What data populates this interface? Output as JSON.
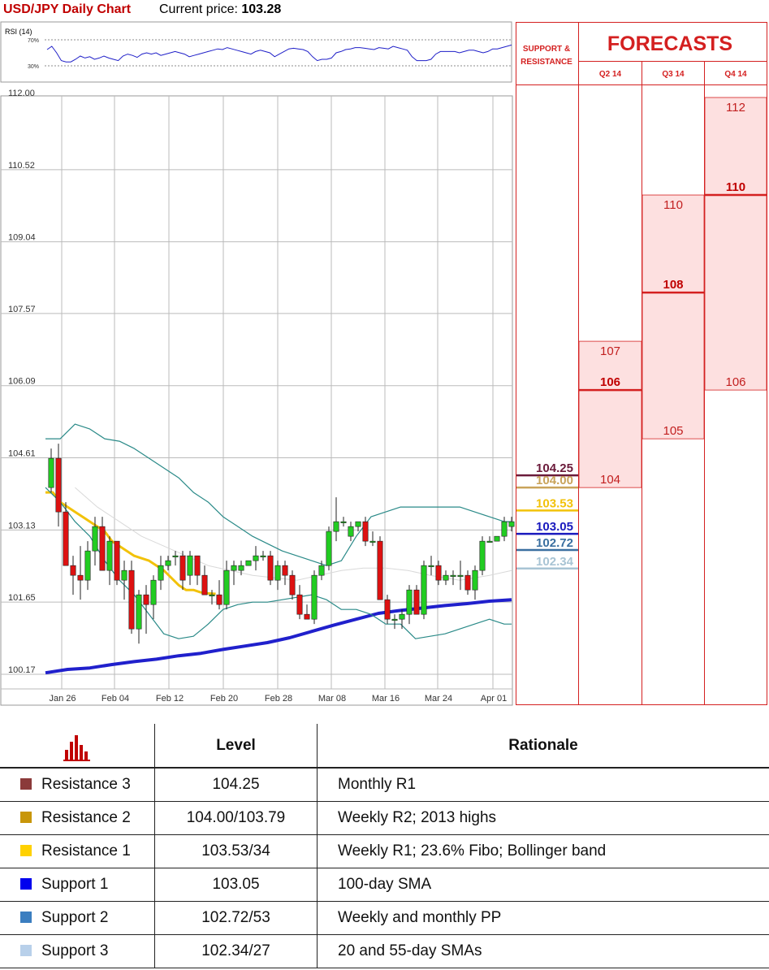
{
  "header": {
    "title": "USD/JPY Daily Chart",
    "price_label": "Current price:",
    "price_value": "103.28"
  },
  "rsi": {
    "label": "RSI (14)",
    "levels": [
      70,
      30
    ],
    "level_labels": [
      "70%",
      "30%"
    ],
    "values": [
      55,
      60,
      50,
      38,
      36,
      36,
      40,
      45,
      42,
      44,
      40,
      42,
      45,
      42,
      40,
      38,
      45,
      48,
      46,
      43,
      48,
      50,
      48,
      50,
      46,
      48,
      50,
      52,
      50,
      48,
      44,
      46,
      48,
      50,
      52,
      54,
      56,
      55,
      58,
      56,
      54,
      52,
      50,
      48,
      52,
      54,
      52,
      50,
      44,
      48,
      52,
      56,
      57,
      56,
      55,
      52,
      44,
      38,
      40,
      40,
      42,
      50,
      52,
      55,
      56,
      58,
      58,
      57,
      56,
      55,
      58,
      57,
      56,
      60,
      58,
      56,
      54,
      44,
      38,
      38,
      38,
      40,
      48,
      52,
      52,
      52,
      52,
      50,
      52,
      54,
      54,
      52,
      50,
      52,
      56,
      56,
      58,
      60,
      62
    ],
    "color": "#1f1fc8"
  },
  "chart_data": {
    "type": "candlestick",
    "title": "USD/JPY Daily Chart",
    "ylim": [
      100.17,
      112.0
    ],
    "y_ticks": [
      "112.00",
      "110.52",
      "109.04",
      "107.57",
      "106.09",
      "104.61",
      "103.13",
      "101.65",
      "100.17"
    ],
    "x_ticks": [
      "Jan 26",
      "Feb 04",
      "Feb 12",
      "Feb 20",
      "Feb 28",
      "Mar 08",
      "Mar 16",
      "Mar 24",
      "Apr 01"
    ],
    "candles": [
      {
        "o": 104.0,
        "h": 104.8,
        "l": 103.9,
        "c": 104.6
      },
      {
        "o": 104.6,
        "h": 104.9,
        "l": 103.2,
        "c": 103.5
      },
      {
        "o": 103.5,
        "h": 103.7,
        "l": 102.5,
        "c": 102.4
      },
      {
        "o": 102.4,
        "h": 102.6,
        "l": 101.8,
        "c": 102.2
      },
      {
        "o": 102.2,
        "h": 102.8,
        "l": 101.7,
        "c": 102.1
      },
      {
        "o": 102.1,
        "h": 102.9,
        "l": 101.9,
        "c": 102.7
      },
      {
        "o": 102.7,
        "h": 103.4,
        "l": 102.4,
        "c": 103.2
      },
      {
        "o": 103.2,
        "h": 103.4,
        "l": 102.3,
        "c": 102.3
      },
      {
        "o": 102.3,
        "h": 103.0,
        "l": 102.0,
        "c": 102.9
      },
      {
        "o": 102.9,
        "h": 102.9,
        "l": 102.0,
        "c": 102.1
      },
      {
        "o": 102.1,
        "h": 102.5,
        "l": 101.7,
        "c": 102.3
      },
      {
        "o": 102.3,
        "h": 102.5,
        "l": 101.0,
        "c": 101.1
      },
      {
        "o": 101.1,
        "h": 101.9,
        "l": 100.8,
        "c": 101.8
      },
      {
        "o": 101.8,
        "h": 102.0,
        "l": 101.0,
        "c": 101.6
      },
      {
        "o": 101.6,
        "h": 102.2,
        "l": 101.3,
        "c": 102.1
      },
      {
        "o": 102.1,
        "h": 102.6,
        "l": 101.9,
        "c": 102.4
      },
      {
        "o": 102.4,
        "h": 102.6,
        "l": 102.3,
        "c": 102.5
      },
      {
        "o": 102.6,
        "h": 102.7,
        "l": 102.4,
        "c": 102.6
      },
      {
        "o": 102.6,
        "h": 102.7,
        "l": 101.9,
        "c": 102.1
      },
      {
        "o": 102.2,
        "h": 102.7,
        "l": 102.0,
        "c": 102.6
      },
      {
        "o": 102.6,
        "h": 102.6,
        "l": 102.0,
        "c": 102.2
      },
      {
        "o": 102.2,
        "h": 102.4,
        "l": 101.8,
        "c": 101.8
      },
      {
        "o": 101.8,
        "h": 101.9,
        "l": 101.6,
        "c": 101.8
      },
      {
        "o": 101.8,
        "h": 102.1,
        "l": 101.5,
        "c": 101.6
      },
      {
        "o": 101.6,
        "h": 102.5,
        "l": 101.5,
        "c": 102.3
      },
      {
        "o": 102.3,
        "h": 102.5,
        "l": 102.0,
        "c": 102.4
      },
      {
        "o": 102.3,
        "h": 102.5,
        "l": 102.2,
        "c": 102.4
      },
      {
        "o": 102.4,
        "h": 102.5,
        "l": 102.4,
        "c": 102.5
      },
      {
        "o": 102.5,
        "h": 102.8,
        "l": 102.3,
        "c": 102.6
      },
      {
        "o": 102.6,
        "h": 102.7,
        "l": 102.5,
        "c": 102.6
      },
      {
        "o": 102.6,
        "h": 102.7,
        "l": 102.0,
        "c": 102.1
      },
      {
        "o": 102.1,
        "h": 102.5,
        "l": 101.9,
        "c": 102.4
      },
      {
        "o": 102.4,
        "h": 102.5,
        "l": 102.0,
        "c": 102.2
      },
      {
        "o": 102.2,
        "h": 102.3,
        "l": 101.7,
        "c": 101.8
      },
      {
        "o": 101.8,
        "h": 102.0,
        "l": 101.3,
        "c": 101.4
      },
      {
        "o": 101.4,
        "h": 101.6,
        "l": 101.3,
        "c": 101.3
      },
      {
        "o": 101.3,
        "h": 102.3,
        "l": 101.2,
        "c": 102.2
      },
      {
        "o": 102.2,
        "h": 102.5,
        "l": 102.1,
        "c": 102.4
      },
      {
        "o": 102.4,
        "h": 103.2,
        "l": 102.3,
        "c": 103.1
      },
      {
        "o": 103.1,
        "h": 103.8,
        "l": 102.9,
        "c": 103.3
      },
      {
        "o": 103.3,
        "h": 103.4,
        "l": 103.2,
        "c": 103.3
      },
      {
        "o": 103.0,
        "h": 103.3,
        "l": 102.9,
        "c": 103.2
      },
      {
        "o": 103.2,
        "h": 103.3,
        "l": 103.1,
        "c": 103.3
      },
      {
        "o": 103.3,
        "h": 103.4,
        "l": 102.8,
        "c": 102.9
      },
      {
        "o": 102.9,
        "h": 103.1,
        "l": 102.8,
        "c": 102.9
      },
      {
        "o": 102.9,
        "h": 103.0,
        "l": 101.7,
        "c": 101.7
      },
      {
        "o": 101.7,
        "h": 101.8,
        "l": 101.2,
        "c": 101.3
      },
      {
        "o": 101.3,
        "h": 101.4,
        "l": 101.1,
        "c": 101.3
      },
      {
        "o": 101.3,
        "h": 101.5,
        "l": 101.1,
        "c": 101.4
      },
      {
        "o": 101.4,
        "h": 102.0,
        "l": 101.2,
        "c": 101.9
      },
      {
        "o": 101.9,
        "h": 102.0,
        "l": 101.4,
        "c": 101.4
      },
      {
        "o": 101.4,
        "h": 102.5,
        "l": 101.3,
        "c": 102.4
      },
      {
        "o": 102.4,
        "h": 102.6,
        "l": 102.2,
        "c": 102.4
      },
      {
        "o": 102.4,
        "h": 102.5,
        "l": 102.0,
        "c": 102.1
      },
      {
        "o": 102.1,
        "h": 102.3,
        "l": 102.0,
        "c": 102.2
      },
      {
        "o": 102.2,
        "h": 102.3,
        "l": 102.0,
        "c": 102.2
      },
      {
        "o": 102.2,
        "h": 102.5,
        "l": 101.9,
        "c": 102.2
      },
      {
        "o": 102.2,
        "h": 102.3,
        "l": 101.8,
        "c": 101.9
      },
      {
        "o": 101.9,
        "h": 102.4,
        "l": 101.7,
        "c": 102.3
      },
      {
        "o": 102.3,
        "h": 103.0,
        "l": 102.2,
        "c": 102.9
      },
      {
        "o": 102.9,
        "h": 103.0,
        "l": 102.9,
        "c": 102.9
      },
      {
        "o": 102.9,
        "h": 103.0,
        "l": 102.9,
        "c": 103.0
      },
      {
        "o": 103.0,
        "h": 103.4,
        "l": 102.9,
        "c": 103.3
      },
      {
        "o": 103.2,
        "h": 103.4,
        "l": 103.1,
        "c": 103.3
      }
    ],
    "series": [
      {
        "kind": "line",
        "color": "#f2c20a",
        "width": 3,
        "values": [
          [
            0,
            103.9
          ],
          [
            10,
            103.9
          ],
          [
            20,
            103.7
          ],
          [
            30,
            103.6
          ],
          [
            40,
            103.5
          ],
          [
            50,
            103.4
          ],
          [
            60,
            103.3
          ],
          [
            70,
            103.2
          ],
          [
            80,
            103.1
          ],
          [
            90,
            102.9
          ],
          [
            100,
            102.8
          ],
          [
            110,
            102.7
          ],
          [
            120,
            102.6
          ],
          [
            130,
            102.55
          ],
          [
            140,
            102.5
          ],
          [
            150,
            102.4
          ],
          [
            160,
            102.3
          ],
          [
            170,
            102.15
          ],
          [
            180,
            102.0
          ],
          [
            190,
            101.9
          ],
          [
            200,
            101.9
          ],
          [
            210,
            101.85
          ],
          [
            220,
            101.83
          ],
          [
            230,
            101.82
          ]
        ]
      },
      {
        "kind": "line",
        "color": "#2020cc",
        "width": 4,
        "values": [
          [
            0,
            100.2
          ],
          [
            30,
            100.27
          ],
          [
            60,
            100.3
          ],
          [
            90,
            100.37
          ],
          [
            120,
            100.43
          ],
          [
            150,
            100.48
          ],
          [
            180,
            100.55
          ],
          [
            210,
            100.6
          ],
          [
            240,
            100.68
          ],
          [
            270,
            100.75
          ],
          [
            300,
            100.82
          ],
          [
            330,
            100.92
          ],
          [
            360,
            101.05
          ],
          [
            390,
            101.18
          ],
          [
            420,
            101.3
          ],
          [
            450,
            101.42
          ],
          [
            480,
            101.48
          ],
          [
            510,
            101.53
          ],
          [
            540,
            101.58
          ],
          [
            570,
            101.62
          ],
          [
            600,
            101.67
          ],
          [
            630,
            101.7
          ]
        ]
      },
      {
        "kind": "line",
        "color": "#2a8a88",
        "width": 1.2,
        "values": [
          [
            0,
            105.0
          ],
          [
            20,
            105.0
          ],
          [
            40,
            105.3
          ],
          [
            60,
            105.2
          ],
          [
            80,
            105.0
          ],
          [
            100,
            104.95
          ],
          [
            120,
            104.8
          ],
          [
            140,
            104.6
          ],
          [
            160,
            104.4
          ],
          [
            180,
            104.2
          ],
          [
            200,
            103.9
          ],
          [
            220,
            103.7
          ],
          [
            240,
            103.4
          ],
          [
            260,
            103.2
          ],
          [
            280,
            103.0
          ],
          [
            300,
            102.85
          ],
          [
            320,
            102.7
          ],
          [
            340,
            102.6
          ],
          [
            360,
            102.5
          ],
          [
            380,
            102.4
          ],
          [
            400,
            102.5
          ],
          [
            420,
            103.0
          ],
          [
            440,
            103.4
          ],
          [
            460,
            103.5
          ],
          [
            480,
            103.6
          ],
          [
            500,
            103.6
          ],
          [
            520,
            103.6
          ],
          [
            540,
            103.6
          ],
          [
            560,
            103.6
          ],
          [
            580,
            103.5
          ],
          [
            600,
            103.4
          ],
          [
            620,
            103.3
          ],
          [
            630,
            103.3
          ]
        ]
      },
      {
        "kind": "line",
        "color": "#2a8a88",
        "width": 1.2,
        "values": [
          [
            0,
            104.0
          ],
          [
            20,
            103.7
          ],
          [
            40,
            103.3
          ],
          [
            60,
            103.0
          ],
          [
            80,
            102.5
          ],
          [
            100,
            102.1
          ],
          [
            120,
            101.8
          ],
          [
            140,
            101.4
          ],
          [
            160,
            101.0
          ],
          [
            180,
            100.9
          ],
          [
            200,
            100.95
          ],
          [
            220,
            101.2
          ],
          [
            240,
            101.5
          ],
          [
            260,
            101.6
          ],
          [
            280,
            101.65
          ],
          [
            300,
            101.65
          ],
          [
            320,
            101.7
          ],
          [
            340,
            101.75
          ],
          [
            360,
            101.8
          ],
          [
            380,
            101.7
          ],
          [
            400,
            101.5
          ],
          [
            420,
            101.5
          ],
          [
            440,
            101.4
          ],
          [
            460,
            101.2
          ],
          [
            480,
            101.2
          ],
          [
            500,
            100.9
          ],
          [
            520,
            100.95
          ],
          [
            540,
            101.0
          ],
          [
            560,
            101.1
          ],
          [
            580,
            101.2
          ],
          [
            600,
            101.3
          ],
          [
            620,
            101.2
          ],
          [
            630,
            101.2
          ]
        ]
      },
      {
        "kind": "line",
        "color": "#d9d9d9",
        "width": 1,
        "values": [
          [
            40,
            104.0
          ],
          [
            70,
            103.6
          ],
          [
            100,
            103.3
          ],
          [
            130,
            103.0
          ],
          [
            160,
            102.8
          ],
          [
            190,
            102.6
          ],
          [
            220,
            102.4
          ],
          [
            250,
            102.3
          ],
          [
            280,
            102.2
          ],
          [
            310,
            102.15
          ],
          [
            340,
            102.1
          ],
          [
            370,
            102.2
          ],
          [
            400,
            102.3
          ],
          [
            430,
            102.35
          ],
          [
            460,
            102.35
          ],
          [
            490,
            102.3
          ],
          [
            520,
            102.2
          ],
          [
            560,
            102.1
          ],
          [
            600,
            102.2
          ],
          [
            630,
            102.3
          ]
        ]
      }
    ]
  },
  "levels": [
    {
      "value": 104.25,
      "label": "104.25",
      "color": "#6b1b3b"
    },
    {
      "value": 104.0,
      "label": "104.00",
      "color": "#c9a35a"
    },
    {
      "value": 103.53,
      "label": "103.53",
      "color": "#f2c20a"
    },
    {
      "value": 103.05,
      "label": "103.05",
      "color": "#1a1abe"
    },
    {
      "value": 102.72,
      "label": "102.72",
      "color": "#3a6fa0"
    },
    {
      "value": 102.34,
      "label": "102.34",
      "color": "#a8c4d4"
    }
  ],
  "forecast_panel": {
    "title": "FORECASTS",
    "sr_title_lines": [
      "SUPPORT &",
      "RESISTANCE"
    ],
    "columns": [
      {
        "label": "Q2 14",
        "low": "104",
        "mid": "106",
        "high": "107",
        "low_v": 104,
        "mid_v": 106,
        "high_v": 107
      },
      {
        "label": "Q3 14",
        "low": "105",
        "mid": "108",
        "high": "110",
        "low_v": 105,
        "mid_v": 108,
        "high_v": 110
      },
      {
        "label": "Q4 14",
        "low": "106",
        "mid": "110",
        "high": "112",
        "low_v": 106,
        "mid_v": 110,
        "high_v": 112
      }
    ],
    "border_color": "#d42020",
    "fill_color": "#fde0e0"
  },
  "table": {
    "level_header": "Level",
    "rationale_header": "Rationale",
    "rows": [
      {
        "name": "Resistance 3",
        "level": "104.25",
        "rationale": "Monthly R1",
        "color": "#8b3a3a"
      },
      {
        "name": "Resistance 2",
        "level": "104.00/103.79",
        "rationale": "Weekly R2; 2013 highs",
        "color": "#c8960a"
      },
      {
        "name": "Resistance 1",
        "level": "103.53/34",
        "rationale": "Weekly R1; 23.6% Fibo; Bollinger band",
        "color": "#ffd100"
      },
      {
        "name": "Support 1",
        "level": "103.05",
        "rationale": "100-day SMA",
        "color": "#0000ee"
      },
      {
        "name": "Support 2",
        "level": "102.72/53",
        "rationale": "Weekly and monthly PP",
        "color": "#3b7ec0"
      },
      {
        "name": "Support 3",
        "level": "102.34/27",
        "rationale": "20 and 55-day SMAs",
        "color": "#b8d0ea"
      }
    ]
  },
  "colors": {
    "up": "#22cc22",
    "down": "#dd1111",
    "grid": "#bbbbbb"
  }
}
